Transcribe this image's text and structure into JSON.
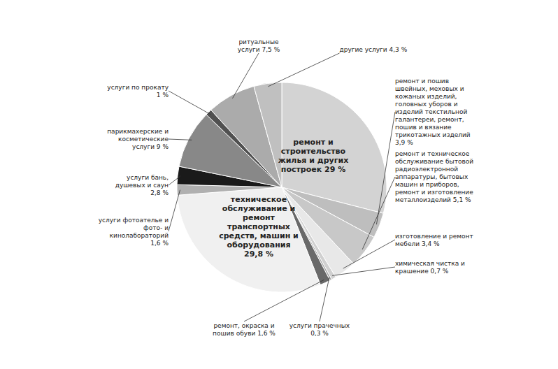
{
  "chart_data": {
    "type": "pie",
    "categories": [
      "ремонт и\nстроительство\nжилья и других\nпостроек 29 %",
      "ремонт и пошив\nшвейных, меховых и\nкожаных изделий,\nголовных уборов и\nизделий текстильной\nгалантереи, ремонт,\nпошив и вязание\nтрикотажных изделий\n3,9 %",
      "ремонт и техническое\nобслуживание бытовой\nрадиоэлектронной\nаппаратуры, бытовых\nмашин и приборов,\nремонт и изготовление\nметаллоизделий 5,1 %",
      "изготовление и ремонт\nмебели 3,4 %",
      "химическая чистка и\nкрашение 0,7 %",
      "услуги прачечных\n0,3 %",
      "ремонт, окраска и\nпошив обуви 1,6 %",
      "техническое\nобслуживание и\nремонт\nтранспортных\nсредств, машин и\nоборудования\n29,8 %",
      "услуги фотоателье и\nфото- и\nкинолабораторий\n1,6 %",
      "услуги бань,\nдушевых и саун\n2,8 %",
      "парикмахерские и\nкосметические\nуслуги 9 %",
      "услуги по прокату\n1 %",
      "ритуальные\nуслуги 7,5 %",
      "другие услуги 4,3 %"
    ],
    "values": [
      29.0,
      3.9,
      5.1,
      3.4,
      0.7,
      0.3,
      1.6,
      29.8,
      1.6,
      2.8,
      9.0,
      1.0,
      7.5,
      4.3
    ],
    "colors": [
      "#d3d3d3",
      "#bebebe",
      "#c8c8c8",
      "#e8e8e8",
      "#d0d0d0",
      "#a8a8a8",
      "#696969",
      "#f0f0f0",
      "#b0b0b0",
      "#1a1a1a",
      "#888888",
      "#505050",
      "#ababab",
      "#c0c0c0"
    ]
  }
}
